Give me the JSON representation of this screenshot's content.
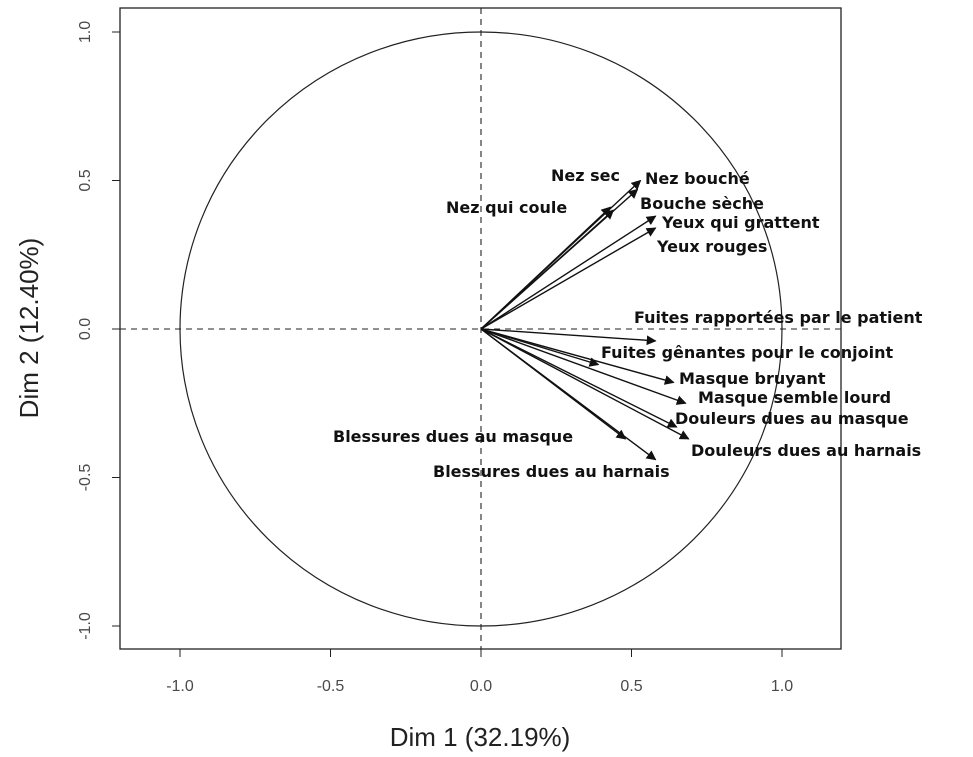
{
  "chart_data": {
    "type": "pca-correlation-circle",
    "xlabel": "Dim 1 (32.19%)",
    "ylabel": "Dim 2 (12.40%)",
    "xlim": [
      -1.2,
      1.2
    ],
    "ylim": [
      -1.08,
      1.08
    ],
    "x_ticks": [
      -1.0,
      -0.5,
      0.0,
      0.5,
      1.0
    ],
    "y_ticks": [
      -1.0,
      -0.5,
      0.0,
      0.5,
      1.0
    ],
    "x_tick_labels": [
      "-1.0",
      "-0.5",
      "0.0",
      "0.5",
      "1.0"
    ],
    "y_tick_labels": [
      "-1.0",
      "-0.5",
      "0.0",
      "0.5",
      "1.0"
    ],
    "unit_circle_radius": 1.0,
    "reference_lines": "dashed at x=0 and y=0",
    "variables": [
      {
        "name": "Nez sec",
        "x": 0.43,
        "y": 0.41
      },
      {
        "name": "Nez qui coule",
        "x": 0.44,
        "y": 0.4
      },
      {
        "name": "Nez bouché",
        "x": 0.53,
        "y": 0.5
      },
      {
        "name": "Bouche sèche",
        "x": 0.52,
        "y": 0.47
      },
      {
        "name": "Yeux qui grattent",
        "x": 0.58,
        "y": 0.38
      },
      {
        "name": "Yeux rouges",
        "x": 0.58,
        "y": 0.34
      },
      {
        "name": "Fuites rapportées par le patient",
        "x": 0.58,
        "y": -0.04
      },
      {
        "name": "Fuites gênantes pour le conjoint",
        "x": 0.39,
        "y": -0.12
      },
      {
        "name": "Masque bruyant",
        "x": 0.64,
        "y": -0.18
      },
      {
        "name": "Masque semble lourd",
        "x": 0.68,
        "y": -0.25
      },
      {
        "name": "Douleurs dues au masque",
        "x": 0.65,
        "y": -0.33
      },
      {
        "name": "Douleurs dues au harnais",
        "x": 0.69,
        "y": -0.37
      },
      {
        "name": "Blessures dues au masque",
        "x": 0.48,
        "y": -0.37
      },
      {
        "name": "Blessures dues au harnais",
        "x": 0.58,
        "y": -0.44
      }
    ]
  }
}
